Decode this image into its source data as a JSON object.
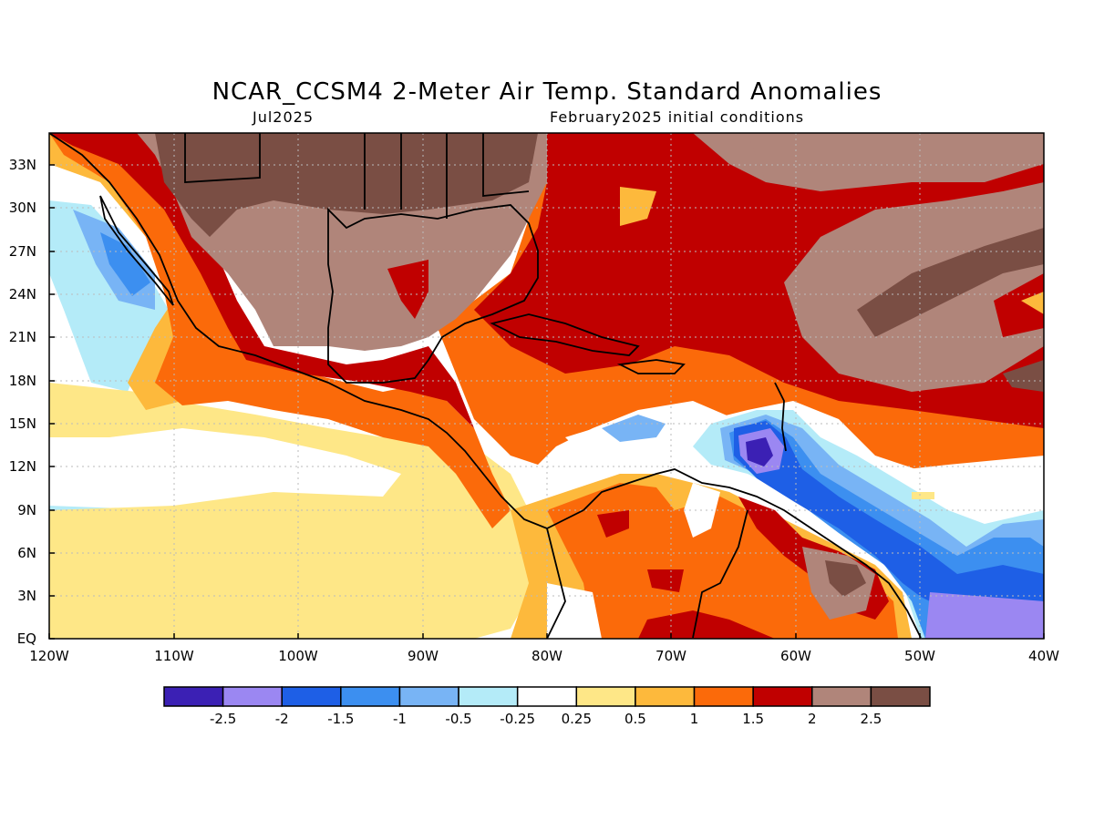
{
  "title": "NCAR_CCSM4 2-Meter Air Temp. Standard Anomalies",
  "valid_month": "Jul2025",
  "init_text": "February2025 initial conditions",
  "lat_labels": [
    "33N",
    "30N",
    "27N",
    "24N",
    "21N",
    "18N",
    "15N",
    "12N",
    "9N",
    "6N",
    "3N",
    "EQ"
  ],
  "lon_labels": [
    "120W",
    "110W",
    "100W",
    "90W",
    "80W",
    "70W",
    "60W",
    "50W",
    "40W"
  ],
  "colorbar": {
    "colors": [
      "#3b20b4",
      "#9b87f2",
      "#1e5fe6",
      "#3c8ff0",
      "#78b4f5",
      "#b4ebf8",
      "#ffffff",
      "#fee787",
      "#fdb93c",
      "#fb6a0a",
      "#c00000",
      "#b0857a",
      "#7a4e44"
    ],
    "labels": [
      "-2.5",
      "-2",
      "-1.5",
      "-1",
      "-0.5",
      "-0.25",
      "0.25",
      "0.5",
      "1",
      "1.5",
      "2",
      "2.5"
    ]
  }
}
